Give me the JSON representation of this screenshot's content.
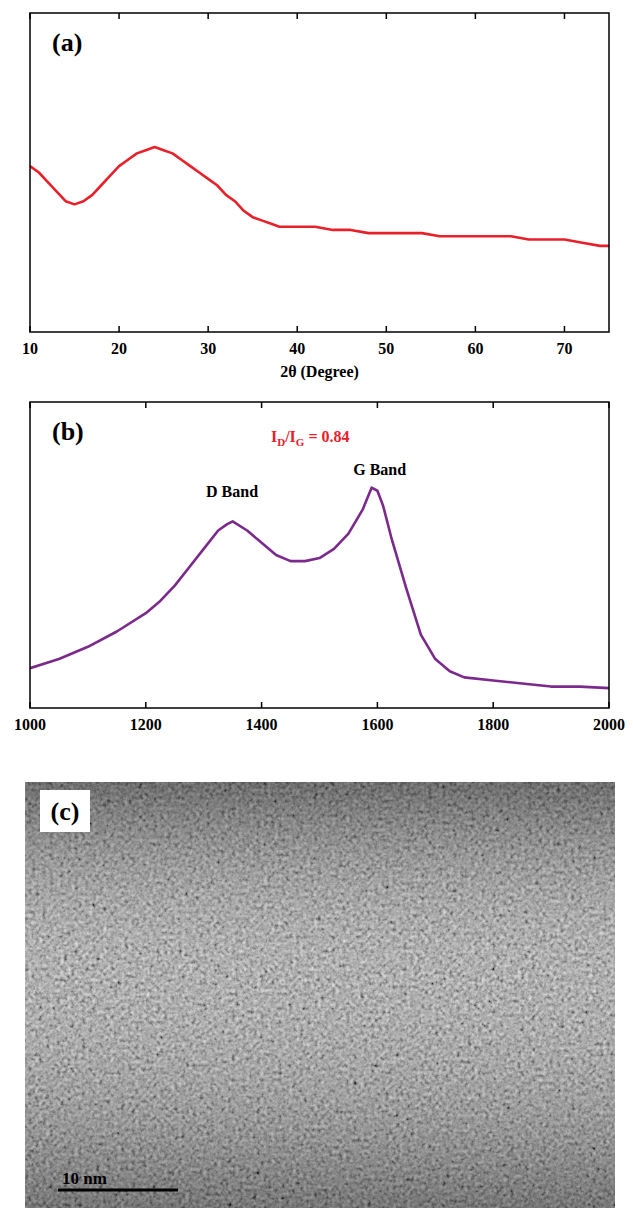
{
  "chart_data": [
    {
      "type": "line",
      "panel_label": "(a)",
      "x_label": "2θ (Degree)",
      "x": [
        10,
        11,
        12,
        13,
        14,
        15,
        16,
        17,
        18,
        19,
        20,
        21,
        22,
        23,
        24,
        25,
        26,
        27,
        28,
        29,
        30,
        31,
        32,
        33,
        34,
        35,
        36,
        37,
        38,
        39,
        40,
        42,
        44,
        46,
        48,
        50,
        52,
        54,
        56,
        58,
        60,
        62,
        64,
        66,
        68,
        70,
        72,
        74,
        75
      ],
      "values": [
        52,
        50,
        47,
        44,
        41,
        40,
        41,
        43,
        46,
        49,
        52,
        54,
        56,
        57,
        58,
        57,
        56,
        54,
        52,
        50,
        48,
        46,
        43,
        41,
        38,
        36,
        35,
        34,
        33,
        33,
        33,
        33,
        32,
        32,
        31,
        31,
        31,
        31,
        30,
        30,
        30,
        30,
        30,
        29,
        29,
        29,
        28,
        27,
        27
      ],
      "color": "#e8202a",
      "xlim": [
        10,
        75
      ],
      "xticks": [
        10,
        20,
        30,
        40,
        50,
        60,
        70
      ],
      "ylim": [
        0,
        100
      ],
      "tick_labels": "x",
      "grid": false
    },
    {
      "type": "line",
      "panel_label": "(b)",
      "x": [
        1000,
        1050,
        1100,
        1150,
        1200,
        1225,
        1250,
        1275,
        1300,
        1325,
        1340,
        1350,
        1375,
        1400,
        1425,
        1450,
        1475,
        1500,
        1525,
        1550,
        1575,
        1590,
        1600,
        1610,
        1625,
        1650,
        1675,
        1700,
        1725,
        1750,
        1800,
        1850,
        1900,
        1950,
        2000
      ],
      "values": [
        13,
        16,
        20,
        25,
        31,
        35,
        40,
        46,
        52,
        58,
        60,
        61,
        58,
        54,
        50,
        48,
        48,
        49,
        52,
        57,
        65,
        72,
        71,
        66,
        55,
        39,
        24,
        16,
        12,
        10,
        9,
        8,
        7,
        7,
        6.5
      ],
      "color": "#7b2a8c",
      "xlim": [
        1000,
        2000
      ],
      "xticks": [
        1000,
        1200,
        1400,
        1600,
        1800,
        2000
      ],
      "ylim": [
        0,
        100
      ],
      "tick_labels": "x",
      "grid": false,
      "annotations": [
        {
          "parts": [
            "I",
            "D",
            "/I",
            "G",
            " = 0.84"
          ],
          "x": 1484,
          "y": 87,
          "color": "#e8202a"
        },
        {
          "parts": [
            "D Band"
          ],
          "x": 1349,
          "y": 69,
          "color": "#000000"
        },
        {
          "parts": [
            "G Band"
          ],
          "x": 1604,
          "y": 76,
          "color": "#000000"
        }
      ]
    }
  ],
  "image": {
    "panel_label": "(c)",
    "scale_bar_label": "10 nm"
  }
}
